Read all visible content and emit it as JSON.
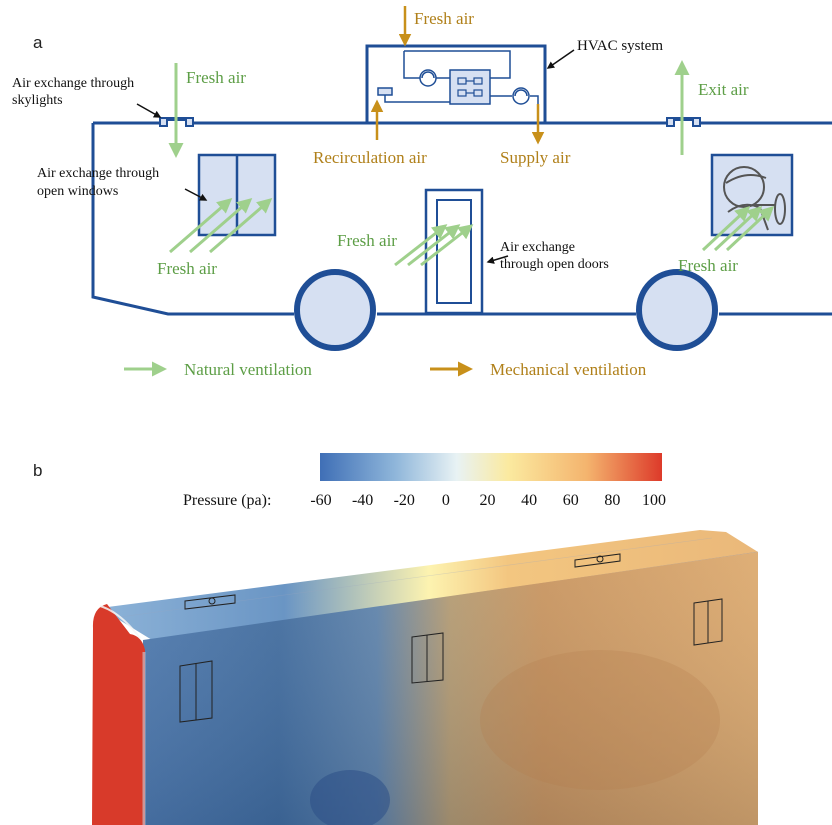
{
  "panel_a": {
    "panel_label": "a",
    "labels": {
      "fresh_air_top": "Fresh air",
      "hvac_system": "HVAC system",
      "skylights_line1": "Air exchange through",
      "skylights_line2": "skylights",
      "fresh_air_skylight": "Fresh air",
      "exit_air": "Exit air",
      "recirculation_air": "Recirculation air",
      "supply_air": "Supply air",
      "windows_line1": "Air exchange through",
      "windows_line2": "open windows",
      "fresh_air_window": "Fresh air",
      "fresh_air_door": "Fresh air",
      "doors_line1": "Air exchange",
      "doors_line2": "through open doors",
      "fresh_air_driver": "Fresh air"
    },
    "legend": [
      {
        "label": "Natural ventilation",
        "color": "#9fd08c"
      },
      {
        "label": "Mechanical ventilation",
        "color": "#c8901a"
      }
    ],
    "colors": {
      "outline": "#1f4e96",
      "fill": "#d6e0f2",
      "natural": "#9fd08c",
      "natural_text": "#5d9e46",
      "mechanical": "#c8901a",
      "mechanical_text": "#b0801a"
    }
  },
  "panel_b": {
    "panel_label": "b",
    "colorbar": {
      "title": "Pressure (pa):",
      "ticks": [
        "-60",
        "-40",
        "-20",
        "0",
        "20",
        "40",
        "60",
        "80",
        "100"
      ],
      "colors": [
        "#3f6fb6",
        "#8fb6da",
        "#e8f2f4",
        "#fbeaa0",
        "#f4b46e",
        "#dd3a2a"
      ]
    }
  }
}
